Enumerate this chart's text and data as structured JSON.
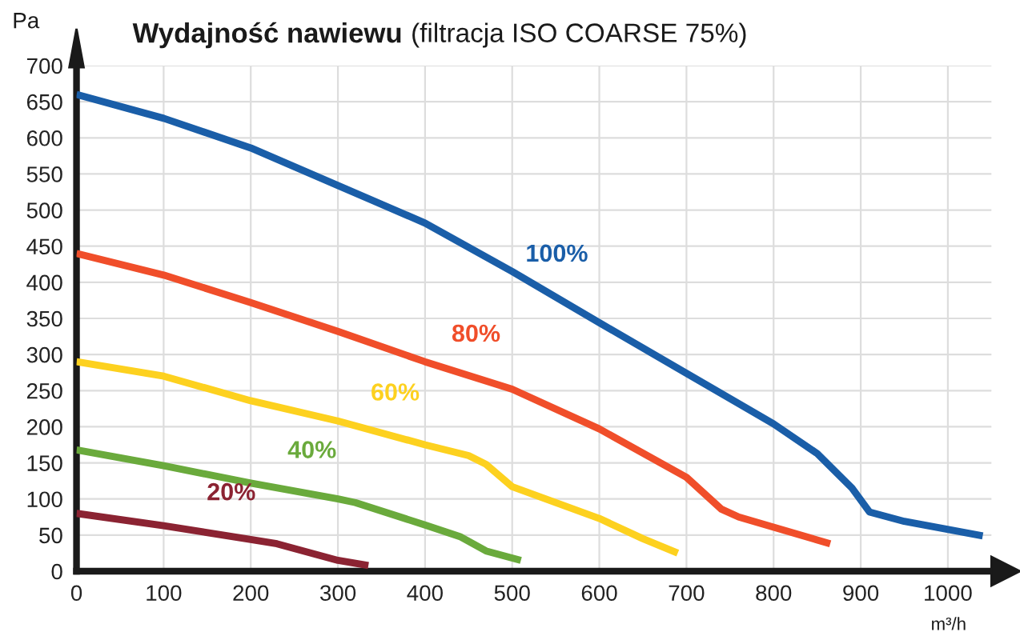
{
  "chart_data": {
    "type": "line",
    "title": "Wydajność nawiewu",
    "subtitle": "(filtracja ISO COARSE 75%)",
    "xlabel": "m³/h",
    "ylabel": "Pa",
    "xlim": [
      0,
      1050
    ],
    "ylim": [
      0,
      700
    ],
    "xticks": [
      0,
      100,
      200,
      300,
      400,
      500,
      600,
      700,
      800,
      900,
      1000
    ],
    "yticks": [
      0,
      50,
      100,
      150,
      200,
      250,
      300,
      350,
      400,
      450,
      500,
      550,
      600,
      650,
      700
    ],
    "grid": true,
    "legend": false,
    "marker": "none",
    "line_style": "solid",
    "series": [
      {
        "name": "100%",
        "color": "#1a5ea8",
        "x": [
          0,
          100,
          200,
          300,
          400,
          500,
          600,
          700,
          800,
          850,
          890,
          910,
          950,
          1040
        ],
        "values": [
          660,
          627,
          586,
          534,
          482,
          415,
          344,
          274,
          204,
          163,
          115,
          82,
          69,
          49
        ]
      },
      {
        "name": "80%",
        "color": "#f04e2a",
        "x": [
          0,
          100,
          200,
          300,
          400,
          500,
          600,
          700,
          740,
          760,
          800,
          865
        ],
        "values": [
          440,
          410,
          372,
          332,
          290,
          252,
          197,
          130,
          86,
          75,
          61,
          38
        ]
      },
      {
        "name": "60%",
        "color": "#fdd11f",
        "x": [
          0,
          100,
          200,
          300,
          400,
          450,
          470,
          500,
          600,
          650,
          690
        ],
        "values": [
          290,
          270,
          236,
          208,
          175,
          160,
          148,
          117,
          73,
          45,
          25
        ]
      },
      {
        "name": "40%",
        "color": "#6aaa3c",
        "x": [
          0,
          100,
          200,
          300,
          320,
          400,
          440,
          470,
          510
        ],
        "values": [
          168,
          146,
          122,
          100,
          95,
          64,
          48,
          28,
          15
        ]
      },
      {
        "name": "20%",
        "color": "#8b2332",
        "x": [
          0,
          100,
          200,
          230,
          300,
          335
        ],
        "values": [
          80,
          63,
          44,
          38,
          15,
          8
        ]
      }
    ]
  }
}
